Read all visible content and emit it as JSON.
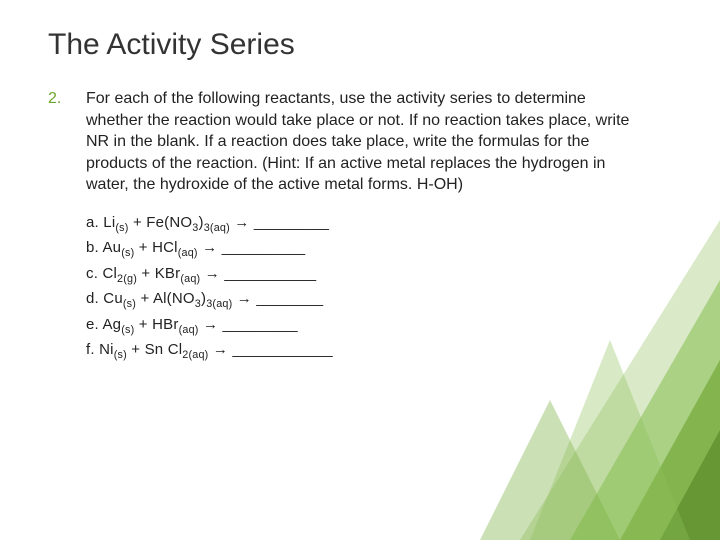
{
  "title": "The Activity Series",
  "list_number": "2.",
  "instruction": "For each of the following reactants, use the activity series to determine whether the reaction would take place or not.  If no reaction takes place, write NR in the blank.  If a reaction does take place, write the formulas for the products of the reaction.  (Hint:  If an active metal replaces the hydrogen in water, the hydroxide of the active metal forms. H-OH)",
  "reactions": [
    {
      "label": "a.",
      "r1": "Li",
      "r1_sub": "(s)",
      "r2a": "Fe(NO",
      "r2b": "3",
      "r2c": ")",
      "r2d": "3(aq)",
      "blank": "_________"
    },
    {
      "label": "b.",
      "r1": "Au",
      "r1_sub": "(s)",
      "r2a": "HCl",
      "r2b": "",
      "r2c": "",
      "r2d": "(aq)",
      "blank": "__________"
    },
    {
      "label": "c.",
      "r1": "Cl",
      "r1_sub": "2(g)",
      "r2a": "KBr",
      "r2b": "",
      "r2c": "",
      "r2d": "(aq)",
      "blank": "___________"
    },
    {
      "label": "d.",
      "r1": "Cu",
      "r1_sub": "(s)",
      "r2a": "Al(NO",
      "r2b": "3",
      "r2c": ")",
      "r2d": "3(aq)",
      "blank": "________"
    },
    {
      "label": "e.",
      "r1": "Ag",
      "r1_sub": "(s)",
      "r2a": "HBr",
      "r2b": "",
      "r2c": "",
      "r2d": "(aq)",
      "blank": "_________"
    },
    {
      "label": "f.",
      "r1": "Ni",
      "r1_sub": "(s)",
      "r2a": "Sn Cl",
      "r2b": "",
      "r2c": "",
      "r2d": "2(aq)",
      "blank": "____________"
    }
  ],
  "colors": {
    "accent": "#6ea52f",
    "text": "#222222",
    "deco_light": "#bcd99a",
    "deco_mid": "#8cbf58",
    "deco_dark": "#5a8a2a",
    "deco_leaf": "#6ea52f"
  },
  "typography": {
    "title_fontsize": 30,
    "body_fontsize": 16,
    "reaction_fontsize": 15
  }
}
